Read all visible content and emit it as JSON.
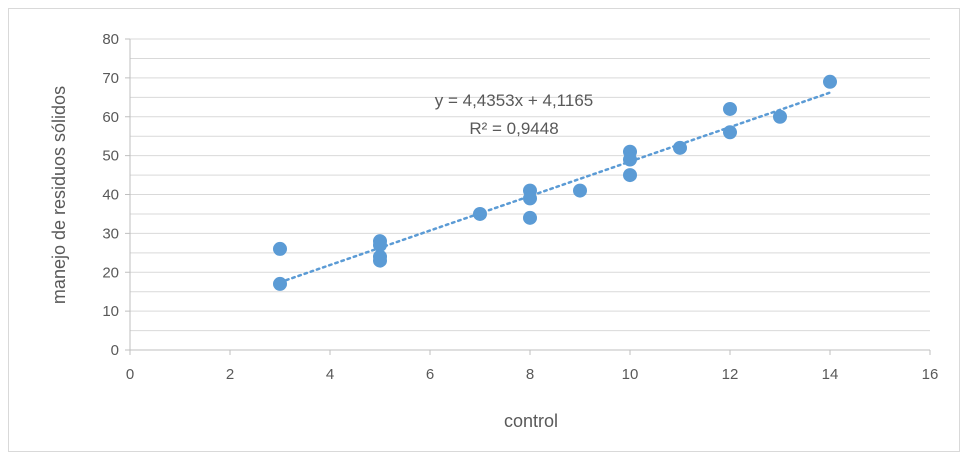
{
  "chart_data": {
    "type": "scatter",
    "title": "",
    "xlabel": "control",
    "ylabel": "manejo de residuos sólidos",
    "xlim": [
      0,
      16
    ],
    "ylim": [
      0,
      80
    ],
    "xticks": [
      0,
      2,
      4,
      6,
      8,
      10,
      12,
      14,
      16
    ],
    "yticks": [
      0,
      10,
      20,
      30,
      40,
      50,
      60,
      70,
      80
    ],
    "grid": true,
    "legend": "none",
    "series": [
      {
        "color": "#5b9bd5",
        "points": [
          {
            "x": 3,
            "y": 26
          },
          {
            "x": 3,
            "y": 17
          },
          {
            "x": 5,
            "y": 28
          },
          {
            "x": 5,
            "y": 27
          },
          {
            "x": 5,
            "y": 24
          },
          {
            "x": 5,
            "y": 23
          },
          {
            "x": 7,
            "y": 35
          },
          {
            "x": 8,
            "y": 41
          },
          {
            "x": 8,
            "y": 39
          },
          {
            "x": 8,
            "y": 34
          },
          {
            "x": 9,
            "y": 41
          },
          {
            "x": 10,
            "y": 51
          },
          {
            "x": 10,
            "y": 49
          },
          {
            "x": 10,
            "y": 45
          },
          {
            "x": 11,
            "y": 52
          },
          {
            "x": 12,
            "y": 62
          },
          {
            "x": 12,
            "y": 56
          },
          {
            "x": 13,
            "y": 60
          },
          {
            "x": 14,
            "y": 69
          }
        ]
      }
    ],
    "trendline": {
      "type": "linear",
      "slope": 4.4353,
      "intercept": 4.1165,
      "x_range": [
        3,
        14
      ],
      "color": "#5b9bd5",
      "style": "dotted",
      "equation_label": "y = 4,4353x + 4,1165",
      "r2_label": "R² = 0,9448"
    },
    "colors": {
      "gridline": "#d9d9d9",
      "axis": "#bfbfbf",
      "text": "#595959"
    }
  }
}
